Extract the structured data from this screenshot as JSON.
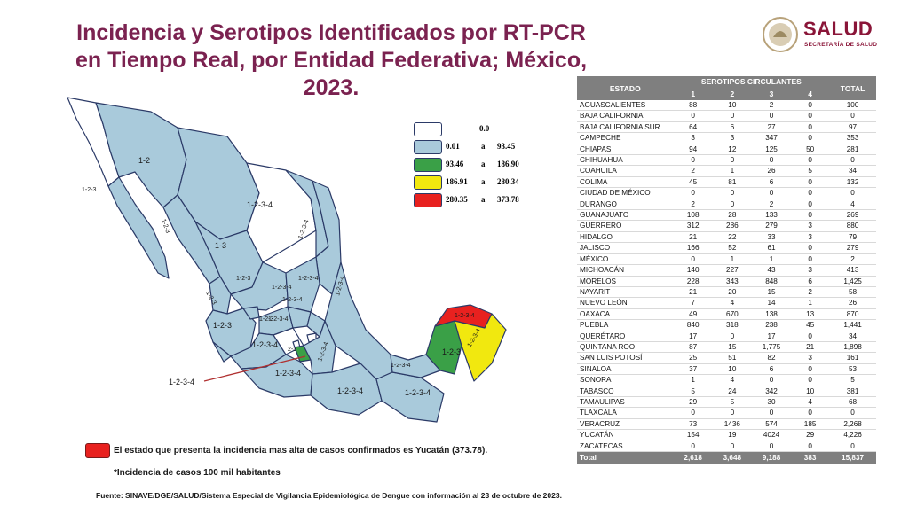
{
  "header": {
    "title": "Incidencia y Serotipos Identificados por RT-PCR en Tiempo Real, por Entidad Federativa; México, 2023."
  },
  "logo": {
    "name": "SALUD",
    "subtitle": "SECRETARÍA DE SALUD"
  },
  "colors": {
    "none": "#ffffff",
    "low": "#a9cadb",
    "mid": "#3aa047",
    "high": "#f1e80f",
    "top": "#e8211f",
    "border": "#2b3a67",
    "header_gray": "#7f7f7f",
    "title": "#7b2250"
  },
  "legend": {
    "zero_label": "0.0",
    "rows": [
      {
        "min": "0.01",
        "sep": "a",
        "max": "93.45"
      },
      {
        "min": "93.46",
        "sep": "a",
        "max": "186.90"
      },
      {
        "min": "186.91",
        "sep": "a",
        "max": "280.34"
      },
      {
        "min": "280.35",
        "sep": "a",
        "max": "373.78"
      }
    ]
  },
  "map_labels": [
    "1-2",
    "1-2-3",
    "1-2-3",
    "1-3",
    "1-2-3-4",
    "1-2-3-4",
    "1-2-3",
    "1-2-3-4",
    "1-2-3-4",
    "1-2-3",
    "1-2-3-4",
    "1-2-3",
    "1-2-3",
    "1-2-3-4",
    "2-3",
    "1-2-3-4",
    "1-2-3-4",
    "1-2-3-4",
    "1-2-3-4",
    "1-2-3-4",
    "1-2-3",
    "1-2-3-4",
    "1-2-3-4",
    "1-2-3-4",
    "1-2-3-4",
    "1-2-3-4"
  ],
  "highlight_note": "El estado que presenta la incidencia mas alta de casos confirmados es Yucatán (373.78).",
  "footnote": "*Incidencia de casos 100 mil habitantes",
  "source": "Fuente: SINAVE/DGE/SALUD/Sistema Especial de Vigilancia Epidemiológica de Dengue con información al 23 de octubre de 2023.",
  "chart_data": {
    "type": "table",
    "title": "Incidencia y Serotipos Identificados por RT-PCR en Tiempo Real, por Entidad Federativa; México, 2023.",
    "columns": {
      "state": "ESTADO",
      "group": "SEROTIPOS CIRCULANTES",
      "serotypes": [
        "1",
        "2",
        "3",
        "4"
      ],
      "total": "TOTAL"
    },
    "rows": [
      {
        "estado": "AGUASCALIENTES",
        "s1": "88",
        "s2": "10",
        "s3": "2",
        "s4": "0",
        "total": "100"
      },
      {
        "estado": "BAJA CALIFORNIA",
        "s1": "0",
        "s2": "0",
        "s3": "0",
        "s4": "0",
        "total": "0"
      },
      {
        "estado": "BAJA CALIFORNIA SUR",
        "s1": "64",
        "s2": "6",
        "s3": "27",
        "s4": "0",
        "total": "97"
      },
      {
        "estado": "CAMPECHE",
        "s1": "3",
        "s2": "3",
        "s3": "347",
        "s4": "0",
        "total": "353"
      },
      {
        "estado": "CHIAPAS",
        "s1": "94",
        "s2": "12",
        "s3": "125",
        "s4": "50",
        "total": "281"
      },
      {
        "estado": "CHIHUAHUA",
        "s1": "0",
        "s2": "0",
        "s3": "0",
        "s4": "0",
        "total": "0"
      },
      {
        "estado": "COAHUILA",
        "s1": "2",
        "s2": "1",
        "s3": "26",
        "s4": "5",
        "total": "34"
      },
      {
        "estado": "COLIMA",
        "s1": "45",
        "s2": "81",
        "s3": "6",
        "s4": "0",
        "total": "132"
      },
      {
        "estado": "CIUDAD DE MÉXICO",
        "s1": "0",
        "s2": "0",
        "s3": "0",
        "s4": "0",
        "total": "0"
      },
      {
        "estado": "DURANGO",
        "s1": "2",
        "s2": "0",
        "s3": "2",
        "s4": "0",
        "total": "4"
      },
      {
        "estado": "GUANAJUATO",
        "s1": "108",
        "s2": "28",
        "s3": "133",
        "s4": "0",
        "total": "269"
      },
      {
        "estado": "GUERRERO",
        "s1": "312",
        "s2": "286",
        "s3": "279",
        "s4": "3",
        "total": "880"
      },
      {
        "estado": "HIDALGO",
        "s1": "21",
        "s2": "22",
        "s3": "33",
        "s4": "3",
        "total": "79"
      },
      {
        "estado": "JALISCO",
        "s1": "166",
        "s2": "52",
        "s3": "61",
        "s4": "0",
        "total": "279"
      },
      {
        "estado": "MÉXICO",
        "s1": "0",
        "s2": "1",
        "s3": "1",
        "s4": "0",
        "total": "2"
      },
      {
        "estado": "MICHOACÁN",
        "s1": "140",
        "s2": "227",
        "s3": "43",
        "s4": "3",
        "total": "413"
      },
      {
        "estado": "MORELOS",
        "s1": "228",
        "s2": "343",
        "s3": "848",
        "s4": "6",
        "total": "1,425"
      },
      {
        "estado": "NAYARIT",
        "s1": "21",
        "s2": "20",
        "s3": "15",
        "s4": "2",
        "total": "58"
      },
      {
        "estado": "NUEVO LEÓN",
        "s1": "7",
        "s2": "4",
        "s3": "14",
        "s4": "1",
        "total": "26"
      },
      {
        "estado": "OAXACA",
        "s1": "49",
        "s2": "670",
        "s3": "138",
        "s4": "13",
        "total": "870"
      },
      {
        "estado": "PUEBLA",
        "s1": "840",
        "s2": "318",
        "s3": "238",
        "s4": "45",
        "total": "1,441"
      },
      {
        "estado": "QUERÉTARO",
        "s1": "17",
        "s2": "0",
        "s3": "17",
        "s4": "0",
        "total": "34"
      },
      {
        "estado": "QUINTANA ROO",
        "s1": "87",
        "s2": "15",
        "s3": "1,775",
        "s4": "21",
        "total": "1,898"
      },
      {
        "estado": "SAN LUIS POTOSÍ",
        "s1": "25",
        "s2": "51",
        "s3": "82",
        "s4": "3",
        "total": "161"
      },
      {
        "estado": "SINALOA",
        "s1": "37",
        "s2": "10",
        "s3": "6",
        "s4": "0",
        "total": "53"
      },
      {
        "estado": "SONORA",
        "s1": "1",
        "s2": "4",
        "s3": "0",
        "s4": "0",
        "total": "5"
      },
      {
        "estado": "TABASCO",
        "s1": "5",
        "s2": "24",
        "s3": "342",
        "s4": "10",
        "total": "381"
      },
      {
        "estado": "TAMAULIPAS",
        "s1": "29",
        "s2": "5",
        "s3": "30",
        "s4": "4",
        "total": "68"
      },
      {
        "estado": "TLAXCALA",
        "s1": "0",
        "s2": "0",
        "s3": "0",
        "s4": "0",
        "total": "0"
      },
      {
        "estado": "VERACRUZ",
        "s1": "73",
        "s2": "1436",
        "s3": "574",
        "s4": "185",
        "total": "2,268"
      },
      {
        "estado": "YUCATÁN",
        "s1": "154",
        "s2": "19",
        "s3": "4024",
        "s4": "29",
        "total": "4,226"
      },
      {
        "estado": "ZACATECAS",
        "s1": "0",
        "s2": "0",
        "s3": "0",
        "s4": "0",
        "total": "0"
      }
    ],
    "total_row": {
      "estado": "Total",
      "s1": "2,618",
      "s2": "3,648",
      "s3": "9,188",
      "s4": "383",
      "total": "15,837"
    }
  }
}
